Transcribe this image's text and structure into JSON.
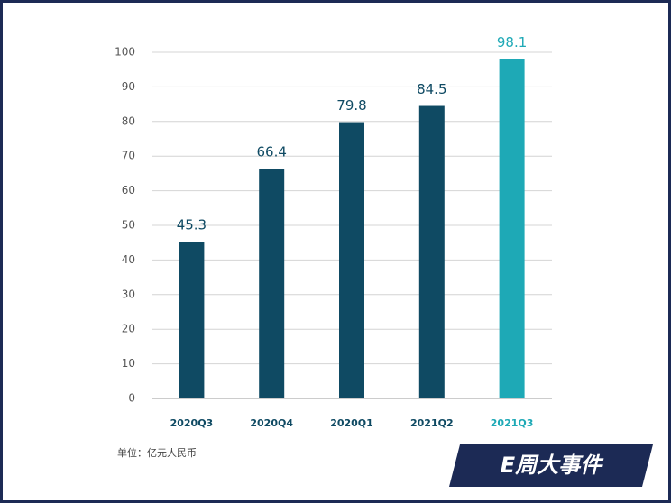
{
  "chart_data": {
    "type": "bar",
    "categories": [
      "2020Q3",
      "2020Q4",
      "2020Q1",
      "2021Q2",
      "2021Q3"
    ],
    "values": [
      45.3,
      66.4,
      79.8,
      84.5,
      98.1
    ],
    "colors": [
      "#0f4a63",
      "#0f4a63",
      "#0f4a63",
      "#0f4a63",
      "#1ea9b6"
    ],
    "ylim": [
      0,
      100
    ],
    "yticks": [
      0,
      10,
      20,
      30,
      40,
      50,
      60,
      70,
      80,
      90,
      100
    ],
    "grid": true,
    "note": "单位：亿元人民币",
    "logo": "E周大事件"
  }
}
